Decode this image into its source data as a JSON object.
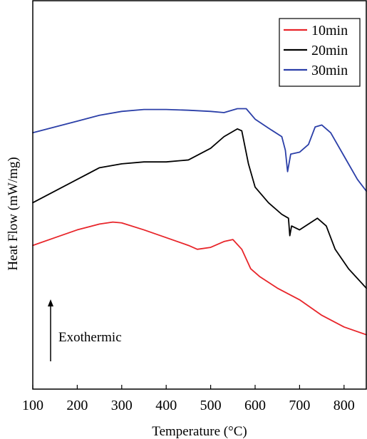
{
  "chart_data": {
    "type": "line",
    "title": "",
    "xlabel": "Temperature (°C)",
    "ylabel": "Heat Flow (mW/mg)",
    "xlim": [
      100,
      850
    ],
    "x_ticks": [
      100,
      200,
      300,
      400,
      500,
      600,
      700,
      800
    ],
    "y_ticks_shown": false,
    "grid": false,
    "legend_placement": "top-right",
    "annotation": {
      "text": "Exothermic",
      "arrow": "up"
    },
    "series": [
      {
        "name": "10min",
        "color": "#e8252a",
        "points": [
          [
            100,
            0.37
          ],
          [
            150,
            0.39
          ],
          [
            200,
            0.41
          ],
          [
            250,
            0.425
          ],
          [
            280,
            0.43
          ],
          [
            300,
            0.428
          ],
          [
            350,
            0.41
          ],
          [
            400,
            0.39
          ],
          [
            450,
            0.37
          ],
          [
            470,
            0.36
          ],
          [
            500,
            0.365
          ],
          [
            530,
            0.38
          ],
          [
            550,
            0.385
          ],
          [
            570,
            0.36
          ],
          [
            590,
            0.31
          ],
          [
            610,
            0.29
          ],
          [
            650,
            0.26
          ],
          [
            700,
            0.23
          ],
          [
            750,
            0.19
          ],
          [
            800,
            0.16
          ],
          [
            850,
            0.14
          ]
        ]
      },
      {
        "name": "20min",
        "color": "#000000",
        "points": [
          [
            100,
            0.48
          ],
          [
            150,
            0.51
          ],
          [
            200,
            0.54
          ],
          [
            250,
            0.57
          ],
          [
            300,
            0.58
          ],
          [
            350,
            0.585
          ],
          [
            400,
            0.585
          ],
          [
            450,
            0.59
          ],
          [
            500,
            0.62
          ],
          [
            530,
            0.65
          ],
          [
            560,
            0.67
          ],
          [
            570,
            0.665
          ],
          [
            585,
            0.58
          ],
          [
            600,
            0.52
          ],
          [
            630,
            0.48
          ],
          [
            660,
            0.45
          ],
          [
            675,
            0.44
          ],
          [
            678,
            0.395
          ],
          [
            682,
            0.42
          ],
          [
            700,
            0.41
          ],
          [
            720,
            0.425
          ],
          [
            740,
            0.44
          ],
          [
            760,
            0.42
          ],
          [
            780,
            0.36
          ],
          [
            810,
            0.31
          ],
          [
            850,
            0.26
          ]
        ]
      },
      {
        "name": "30min",
        "color": "#2b3fa8",
        "points": [
          [
            100,
            0.66
          ],
          [
            150,
            0.675
          ],
          [
            200,
            0.69
          ],
          [
            250,
            0.705
          ],
          [
            300,
            0.715
          ],
          [
            350,
            0.72
          ],
          [
            400,
            0.72
          ],
          [
            450,
            0.718
          ],
          [
            500,
            0.715
          ],
          [
            530,
            0.712
          ],
          [
            560,
            0.722
          ],
          [
            580,
            0.722
          ],
          [
            600,
            0.695
          ],
          [
            630,
            0.672
          ],
          [
            660,
            0.65
          ],
          [
            668,
            0.615
          ],
          [
            673,
            0.56
          ],
          [
            680,
            0.605
          ],
          [
            700,
            0.61
          ],
          [
            720,
            0.63
          ],
          [
            735,
            0.675
          ],
          [
            750,
            0.68
          ],
          [
            770,
            0.66
          ],
          [
            800,
            0.6
          ],
          [
            830,
            0.54
          ],
          [
            850,
            0.51
          ]
        ]
      }
    ]
  }
}
